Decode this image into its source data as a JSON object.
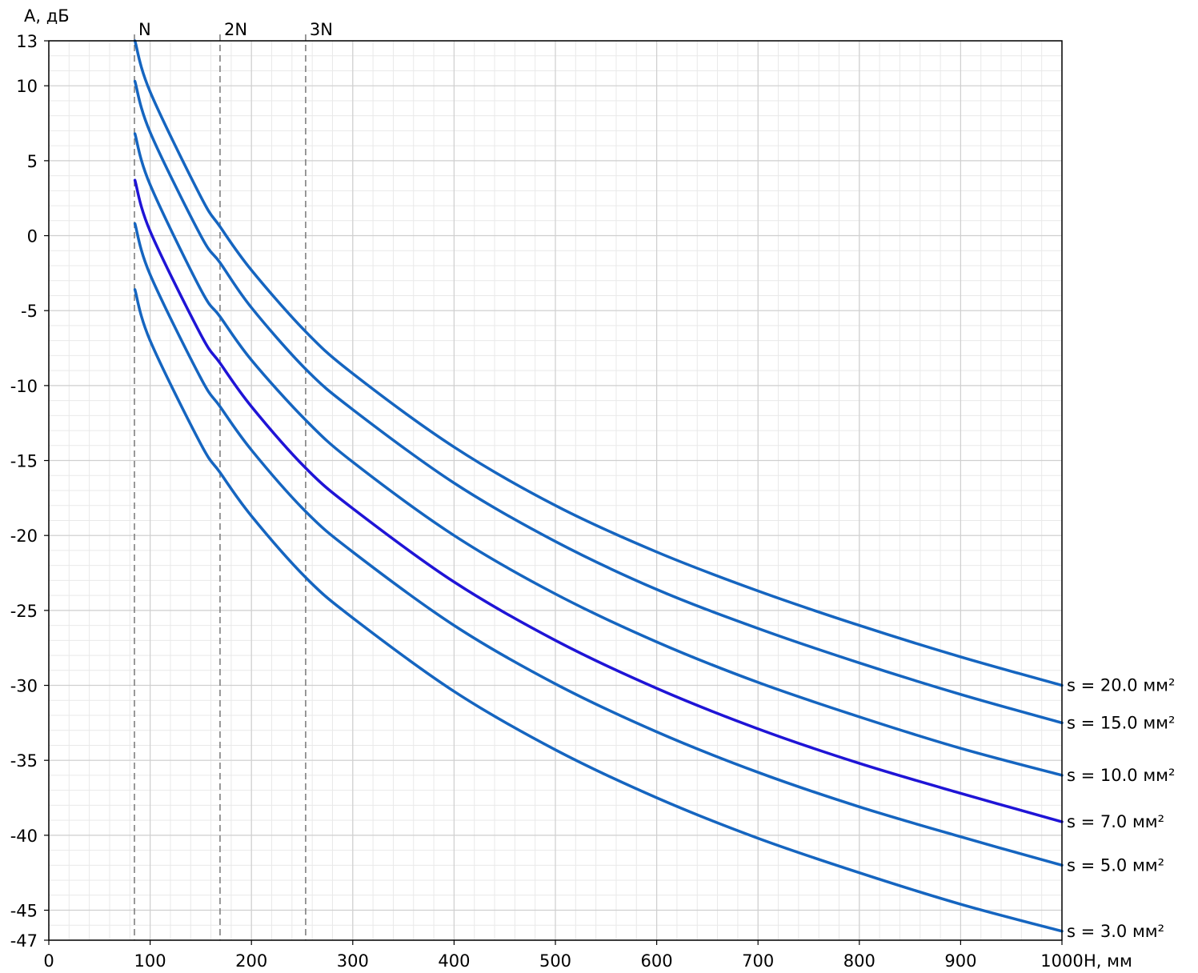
{
  "chart_data": {
    "type": "line",
    "xlabel": "H, мм",
    "ylabel": "A, дБ",
    "xlim": [
      0,
      1000
    ],
    "ylim": [
      -47,
      13
    ],
    "x_ticks": [
      0,
      100,
      200,
      300,
      400,
      500,
      600,
      700,
      800,
      900,
      1000
    ],
    "y_ticks": [
      13,
      10,
      5,
      0,
      -5,
      -10,
      -15,
      -20,
      -25,
      -30,
      -35,
      -40,
      -45,
      -47
    ],
    "grid": true,
    "markers": [
      {
        "label": "N",
        "x": 84.5
      },
      {
        "label": "2N",
        "x": 169
      },
      {
        "label": "3N",
        "x": 253.5
      }
    ],
    "series": [
      {
        "name": "s = 20.0 мм²",
        "color": "#1565c0",
        "x": [
          85,
          100,
          150,
          169,
          200,
          253.5,
          300,
          400,
          500,
          600,
          700,
          800,
          900,
          1000
        ],
        "y": [
          13.0,
          9.6,
          2.6,
          0.6,
          -2.3,
          -6.4,
          -9.2,
          -14.1,
          -18.0,
          -21.1,
          -23.7,
          -26.0,
          -28.1,
          -30.0
        ]
      },
      {
        "name": "s = 15.0 мм²",
        "color": "#1565c0",
        "x": [
          85,
          100,
          150,
          169,
          200,
          253.5,
          300,
          400,
          500,
          600,
          700,
          800,
          900,
          1000
        ],
        "y": [
          10.3,
          6.9,
          0.0,
          -1.8,
          -4.8,
          -8.9,
          -11.6,
          -16.5,
          -20.4,
          -23.6,
          -26.2,
          -28.5,
          -30.6,
          -32.5
        ]
      },
      {
        "name": "s = 10.0 мм²",
        "color": "#1565c0",
        "x": [
          85,
          100,
          150,
          169,
          200,
          253.5,
          300,
          400,
          500,
          600,
          700,
          800,
          900,
          1000
        ],
        "y": [
          6.8,
          3.4,
          -3.6,
          -5.4,
          -8.3,
          -12.3,
          -15.1,
          -20.0,
          -23.9,
          -27.1,
          -29.8,
          -32.1,
          -34.2,
          -36.0
        ]
      },
      {
        "name": "s = 7.0 мм²",
        "color": "#1f14d6",
        "x": [
          85,
          100,
          150,
          169,
          200,
          253.5,
          300,
          400,
          500,
          600,
          700,
          800,
          900,
          1000
        ],
        "y": [
          3.7,
          0.3,
          -6.6,
          -8.5,
          -11.4,
          -15.5,
          -18.2,
          -23.1,
          -27.0,
          -30.2,
          -32.9,
          -35.2,
          -37.2,
          -39.1
        ]
      },
      {
        "name": "s = 5.0 мм²",
        "color": "#1565c0",
        "x": [
          85,
          100,
          150,
          169,
          200,
          253.5,
          300,
          400,
          500,
          600,
          700,
          800,
          900,
          1000
        ],
        "y": [
          0.8,
          -2.6,
          -9.5,
          -11.4,
          -14.3,
          -18.4,
          -21.1,
          -26.0,
          -29.9,
          -33.1,
          -35.8,
          -38.1,
          -40.1,
          -42.0
        ]
      },
      {
        "name": "s = 3.0 мм²",
        "color": "#1565c0",
        "x": [
          85,
          100,
          150,
          169,
          200,
          253.5,
          300,
          400,
          500,
          600,
          700,
          800,
          900,
          1000
        ],
        "y": [
          -3.6,
          -7.0,
          -13.9,
          -15.8,
          -18.7,
          -22.8,
          -25.5,
          -30.4,
          -34.3,
          -37.5,
          -40.2,
          -42.5,
          -44.6,
          -46.4
        ]
      }
    ]
  }
}
